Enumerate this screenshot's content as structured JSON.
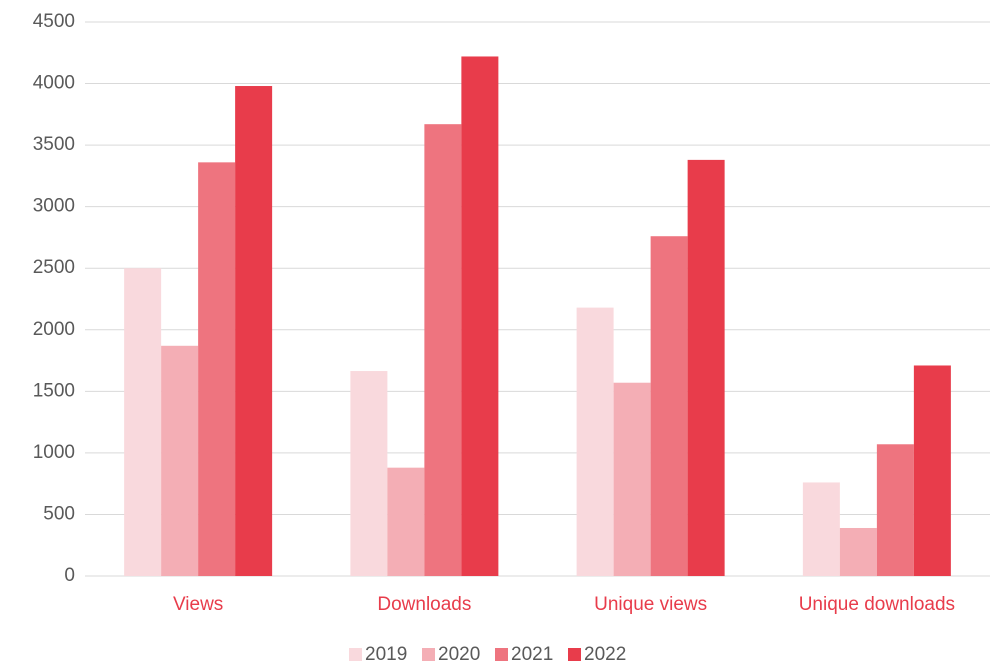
{
  "chart_data": {
    "type": "bar",
    "categories": [
      "Views",
      "Downloads",
      "Unique views",
      "Unique downloads"
    ],
    "series": [
      {
        "name": "2019",
        "color": "#f9d9dd",
        "values": [
          2500,
          1665,
          2180,
          760
        ]
      },
      {
        "name": "2020",
        "color": "#f4aeb5",
        "values": [
          1870,
          880,
          1570,
          390
        ]
      },
      {
        "name": "2021",
        "color": "#ee747f",
        "values": [
          3360,
          3670,
          2760,
          1070
        ]
      },
      {
        "name": "2022",
        "color": "#e83c4b",
        "values": [
          3980,
          4220,
          3380,
          1710
        ]
      }
    ],
    "ylim": [
      0,
      4500
    ],
    "yticks": [
      0,
      500,
      1000,
      1500,
      2000,
      2500,
      3000,
      3500,
      4000,
      4500
    ],
    "grid": true,
    "legend": "bottom",
    "category_label_color": "#e83c4b"
  }
}
